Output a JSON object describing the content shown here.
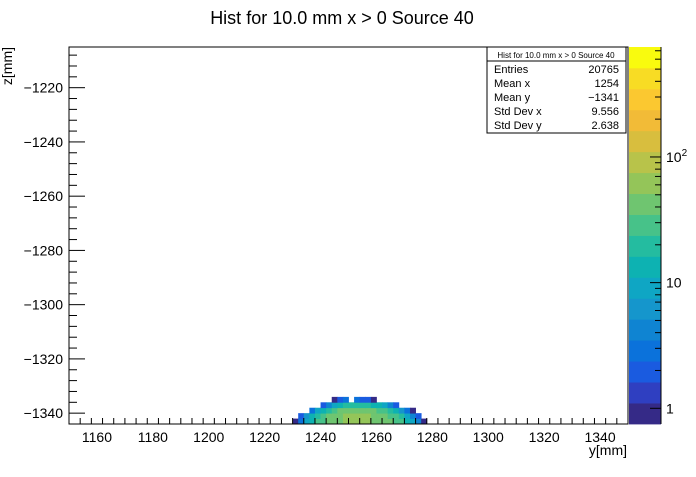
{
  "chart_data": {
    "type": "heatmap",
    "title": "Hist for 10.0 mm x > 0 Source 40",
    "xlabel": "y[mm]",
    "ylabel": "z[mm]",
    "xlim": [
      1150,
      1350
    ],
    "ylim": [
      -1344,
      -1205
    ],
    "x_ticks": [
      {
        "value": 1160,
        "label": "1160"
      },
      {
        "value": 1180,
        "label": "1180"
      },
      {
        "value": 1200,
        "label": "1200"
      },
      {
        "value": 1220,
        "label": "1220"
      },
      {
        "value": 1240,
        "label": "1240"
      },
      {
        "value": 1260,
        "label": "1260"
      },
      {
        "value": 1280,
        "label": "1280"
      },
      {
        "value": 1300,
        "label": "1300"
      },
      {
        "value": 1320,
        "label": "1320"
      },
      {
        "value": 1340,
        "label": "1340"
      }
    ],
    "y_ticks": [
      {
        "value": -1220,
        "label": "−1220"
      },
      {
        "value": -1240,
        "label": "−1240"
      },
      {
        "value": -1260,
        "label": "−1260"
      },
      {
        "value": -1280,
        "label": "−1280"
      },
      {
        "value": -1300,
        "label": "−1300"
      },
      {
        "value": -1320,
        "label": "−1320"
      },
      {
        "value": -1340,
        "label": "−1340"
      }
    ],
    "bin_width_x": 2,
    "bin_width_y": 2,
    "cells": [
      {
        "x": 1230,
        "y": -1344,
        "v": 1
      },
      {
        "x": 1232,
        "y": -1344,
        "v": 3
      },
      {
        "x": 1234,
        "y": -1344,
        "v": 8
      },
      {
        "x": 1236,
        "y": -1344,
        "v": 15
      },
      {
        "x": 1238,
        "y": -1344,
        "v": 25
      },
      {
        "x": 1240,
        "y": -1344,
        "v": 30
      },
      {
        "x": 1242,
        "y": -1344,
        "v": 40
      },
      {
        "x": 1244,
        "y": -1344,
        "v": 45
      },
      {
        "x": 1246,
        "y": -1344,
        "v": 50
      },
      {
        "x": 1248,
        "y": -1344,
        "v": 55
      },
      {
        "x": 1250,
        "y": -1344,
        "v": 55
      },
      {
        "x": 1252,
        "y": -1344,
        "v": 60
      },
      {
        "x": 1254,
        "y": -1344,
        "v": 60
      },
      {
        "x": 1256,
        "y": -1344,
        "v": 55
      },
      {
        "x": 1258,
        "y": -1344,
        "v": 50
      },
      {
        "x": 1260,
        "y": -1344,
        "v": 45
      },
      {
        "x": 1262,
        "y": -1344,
        "v": 40
      },
      {
        "x": 1264,
        "y": -1344,
        "v": 35
      },
      {
        "x": 1266,
        "y": -1344,
        "v": 30
      },
      {
        "x": 1268,
        "y": -1344,
        "v": 25
      },
      {
        "x": 1270,
        "y": -1344,
        "v": 15
      },
      {
        "x": 1272,
        "y": -1344,
        "v": 8
      },
      {
        "x": 1274,
        "y": -1344,
        "v": 4
      },
      {
        "x": 1276,
        "y": -1344,
        "v": 1
      },
      {
        "x": 1232,
        "y": -1342,
        "v": 2
      },
      {
        "x": 1234,
        "y": -1342,
        "v": 6
      },
      {
        "x": 1236,
        "y": -1342,
        "v": 12
      },
      {
        "x": 1238,
        "y": -1342,
        "v": 20
      },
      {
        "x": 1240,
        "y": -1342,
        "v": 28
      },
      {
        "x": 1242,
        "y": -1342,
        "v": 35
      },
      {
        "x": 1244,
        "y": -1342,
        "v": 42
      },
      {
        "x": 1246,
        "y": -1342,
        "v": 48
      },
      {
        "x": 1248,
        "y": -1342,
        "v": 52
      },
      {
        "x": 1250,
        "y": -1342,
        "v": 55
      },
      {
        "x": 1252,
        "y": -1342,
        "v": 58
      },
      {
        "x": 1254,
        "y": -1342,
        "v": 55
      },
      {
        "x": 1256,
        "y": -1342,
        "v": 52
      },
      {
        "x": 1258,
        "y": -1342,
        "v": 48
      },
      {
        "x": 1260,
        "y": -1342,
        "v": 42
      },
      {
        "x": 1262,
        "y": -1342,
        "v": 36
      },
      {
        "x": 1264,
        "y": -1342,
        "v": 30
      },
      {
        "x": 1266,
        "y": -1342,
        "v": 24
      },
      {
        "x": 1268,
        "y": -1342,
        "v": 18
      },
      {
        "x": 1270,
        "y": -1342,
        "v": 10
      },
      {
        "x": 1272,
        "y": -1342,
        "v": 5
      },
      {
        "x": 1274,
        "y": -1342,
        "v": 2
      },
      {
        "x": 1236,
        "y": -1340,
        "v": 3
      },
      {
        "x": 1238,
        "y": -1340,
        "v": 8
      },
      {
        "x": 1240,
        "y": -1340,
        "v": 14
      },
      {
        "x": 1242,
        "y": -1340,
        "v": 22
      },
      {
        "x": 1244,
        "y": -1340,
        "v": 30
      },
      {
        "x": 1246,
        "y": -1340,
        "v": 36
      },
      {
        "x": 1248,
        "y": -1340,
        "v": 40
      },
      {
        "x": 1250,
        "y": -1340,
        "v": 42
      },
      {
        "x": 1252,
        "y": -1340,
        "v": 45
      },
      {
        "x": 1254,
        "y": -1340,
        "v": 42
      },
      {
        "x": 1256,
        "y": -1340,
        "v": 40
      },
      {
        "x": 1258,
        "y": -1340,
        "v": 36
      },
      {
        "x": 1260,
        "y": -1340,
        "v": 30
      },
      {
        "x": 1262,
        "y": -1340,
        "v": 25
      },
      {
        "x": 1264,
        "y": -1340,
        "v": 18
      },
      {
        "x": 1266,
        "y": -1340,
        "v": 12
      },
      {
        "x": 1268,
        "y": -1340,
        "v": 7
      },
      {
        "x": 1270,
        "y": -1340,
        "v": 3
      },
      {
        "x": 1272,
        "y": -1340,
        "v": 1
      },
      {
        "x": 1240,
        "y": -1338,
        "v": 2
      },
      {
        "x": 1242,
        "y": -1338,
        "v": 5
      },
      {
        "x": 1244,
        "y": -1338,
        "v": 10
      },
      {
        "x": 1246,
        "y": -1338,
        "v": 15
      },
      {
        "x": 1248,
        "y": -1338,
        "v": 18
      },
      {
        "x": 1250,
        "y": -1338,
        "v": 20
      },
      {
        "x": 1252,
        "y": -1338,
        "v": 22
      },
      {
        "x": 1254,
        "y": -1338,
        "v": 20
      },
      {
        "x": 1256,
        "y": -1338,
        "v": 18
      },
      {
        "x": 1258,
        "y": -1338,
        "v": 15
      },
      {
        "x": 1260,
        "y": -1338,
        "v": 12
      },
      {
        "x": 1262,
        "y": -1338,
        "v": 8
      },
      {
        "x": 1264,
        "y": -1338,
        "v": 5
      },
      {
        "x": 1266,
        "y": -1338,
        "v": 2
      },
      {
        "x": 1244,
        "y": -1336,
        "v": 1
      },
      {
        "x": 1246,
        "y": -1336,
        "v": 2
      },
      {
        "x": 1248,
        "y": -1336,
        "v": 3
      },
      {
        "x": 1252,
        "y": -1336,
        "v": 3
      },
      {
        "x": 1254,
        "y": -1336,
        "v": 2
      },
      {
        "x": 1256,
        "y": -1336,
        "v": 2
      },
      {
        "x": 1258,
        "y": -1336,
        "v": 1
      }
    ],
    "color_scale": {
      "type": "log",
      "range": [
        0.75,
        750
      ],
      "ticks": [
        {
          "value": 1,
          "label": "1"
        },
        {
          "value": 10,
          "label": "10"
        },
        {
          "value": 100,
          "label": "10",
          "exponent": "2"
        }
      ],
      "palette": [
        "#352a87",
        "#2f3fc1",
        "#1a5be0",
        "#0b72db",
        "#0f84d2",
        "#1596cc",
        "#0fa6c4",
        "#0db2b2",
        "#24bca0",
        "#47c289",
        "#6fc570",
        "#94c559",
        "#b8c34a",
        "#d8be3e",
        "#f2bb37",
        "#fbc830",
        "#f8dc24",
        "#f9fb0e"
      ]
    },
    "stats": {
      "title": "Hist for 10.0 mm x > 0 Source 40",
      "rows": [
        {
          "label": "Entries",
          "value": "20765"
        },
        {
          "label": "Mean x",
          "value": "1254"
        },
        {
          "label": "Mean y",
          "value": "−1341"
        },
        {
          "label": "Std Dev x",
          "value": "9.556"
        },
        {
          "label": "Std Dev y",
          "value": "2.638"
        }
      ]
    }
  }
}
